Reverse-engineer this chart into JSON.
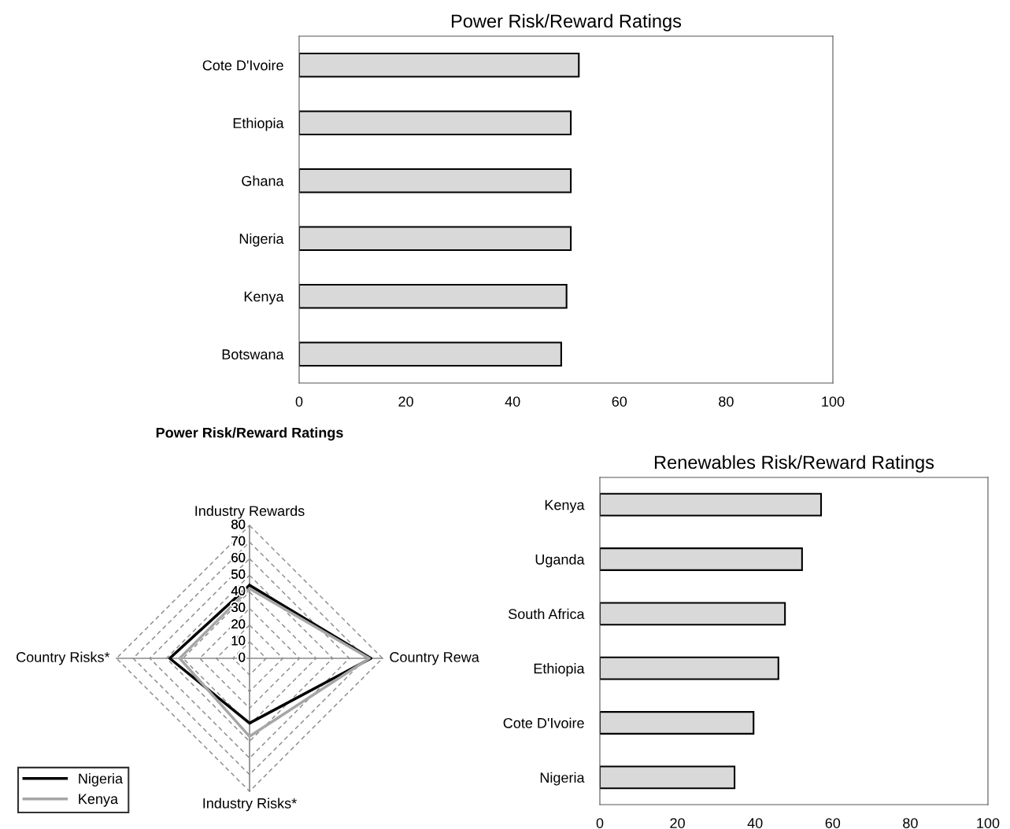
{
  "chart_data": [
    {
      "type": "bar",
      "orientation": "horizontal",
      "title": "Power Risk/Reward Ratings",
      "categories": [
        "Cote D'Ivoire",
        "Ethiopia",
        "Ghana",
        "Nigeria",
        "Kenya",
        "Botswana"
      ],
      "values": [
        52.4,
        50.9,
        50.9,
        50.9,
        50.1,
        49.1
      ],
      "color": "#d9d9d9",
      "xlim": [
        0,
        100
      ],
      "xticks": [
        0,
        20,
        40,
        60,
        80,
        100
      ],
      "grid": false
    },
    {
      "type": "radar",
      "title": "Power Risk/Reward Ratings",
      "categories": [
        "Industry Rewards",
        "Country Rewa",
        "Industry Risks*",
        "Country Risks*"
      ],
      "ylim": [
        0,
        80
      ],
      "yticks": [
        0,
        10,
        20,
        30,
        40,
        50,
        60,
        70,
        80
      ],
      "grid": true,
      "legend": "bottom left",
      "series": [
        {
          "name": "Nigeria",
          "color": "#000000",
          "values": [
            44,
            73,
            39,
            48
          ]
        },
        {
          "name": "Kenya",
          "color": "#a6a6a6",
          "values": [
            42,
            72,
            47,
            42
          ]
        }
      ]
    },
    {
      "type": "bar",
      "orientation": "horizontal",
      "title": "Renewables Risk/Reward Ratings",
      "categories": [
        "Kenya",
        "Uganda",
        "South Africa",
        "Ethiopia",
        "Cote D'Ivoire",
        "Nigeria"
      ],
      "values": [
        57.0,
        52.1,
        47.7,
        46.0,
        39.6,
        34.7
      ],
      "color": "#d9d9d9",
      "xlim": [
        0,
        100
      ],
      "xticks": [
        0,
        20,
        40,
        60,
        80,
        100
      ],
      "grid": false
    }
  ]
}
